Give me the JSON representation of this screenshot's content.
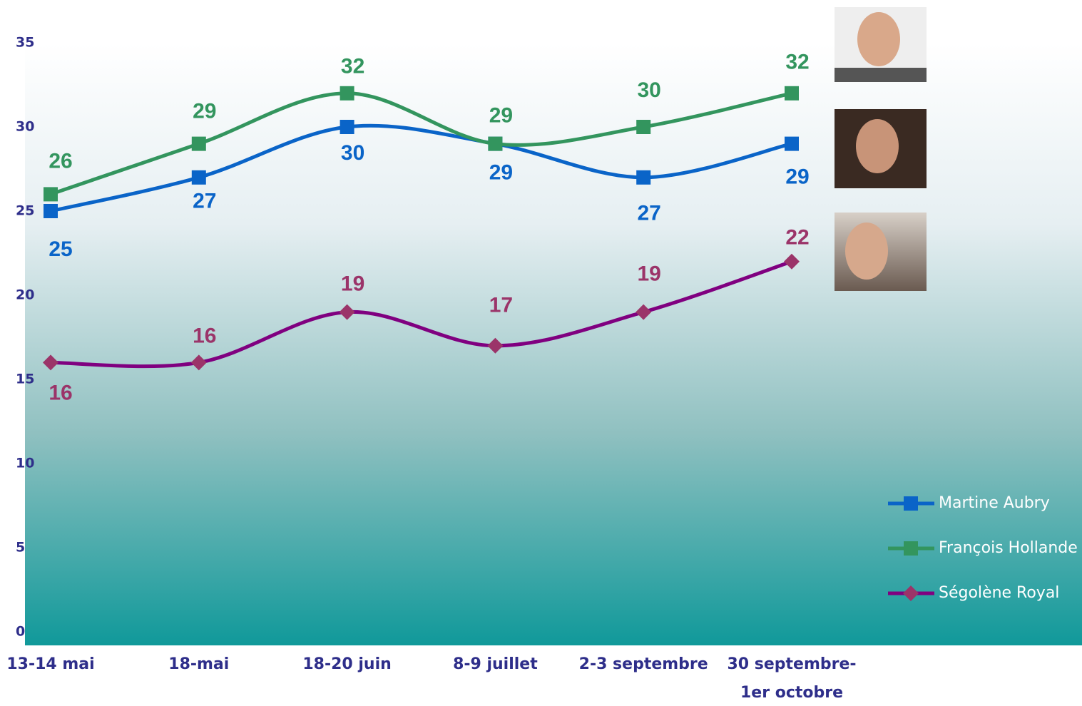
{
  "chart_data": {
    "type": "line",
    "categories": [
      "13-14 mai",
      "18-mai",
      "18-20 juin",
      "8-9 juillet",
      "2-3 septembre",
      "30 septembre-\n1er octobre"
    ],
    "ylim": [
      0,
      35
    ],
    "yticks": [
      0,
      5,
      10,
      15,
      20,
      25,
      30,
      35
    ],
    "series": [
      {
        "name": "Martine Aubry",
        "color": "#0a64c8",
        "marker_color": "#0a64c8",
        "marker": "square",
        "values": [
          25,
          27,
          30,
          29,
          27,
          29
        ]
      },
      {
        "name": "François Hollande",
        "color": "#33955e",
        "marker_color": "#33955e",
        "marker": "square",
        "values": [
          26,
          29,
          32,
          29,
          30,
          32
        ]
      },
      {
        "name": "Ségolène Royal",
        "color": "#800080",
        "marker_color": "#9b3469",
        "marker": "diamond",
        "values": [
          16,
          16,
          19,
          17,
          19,
          22
        ]
      }
    ]
  }
}
